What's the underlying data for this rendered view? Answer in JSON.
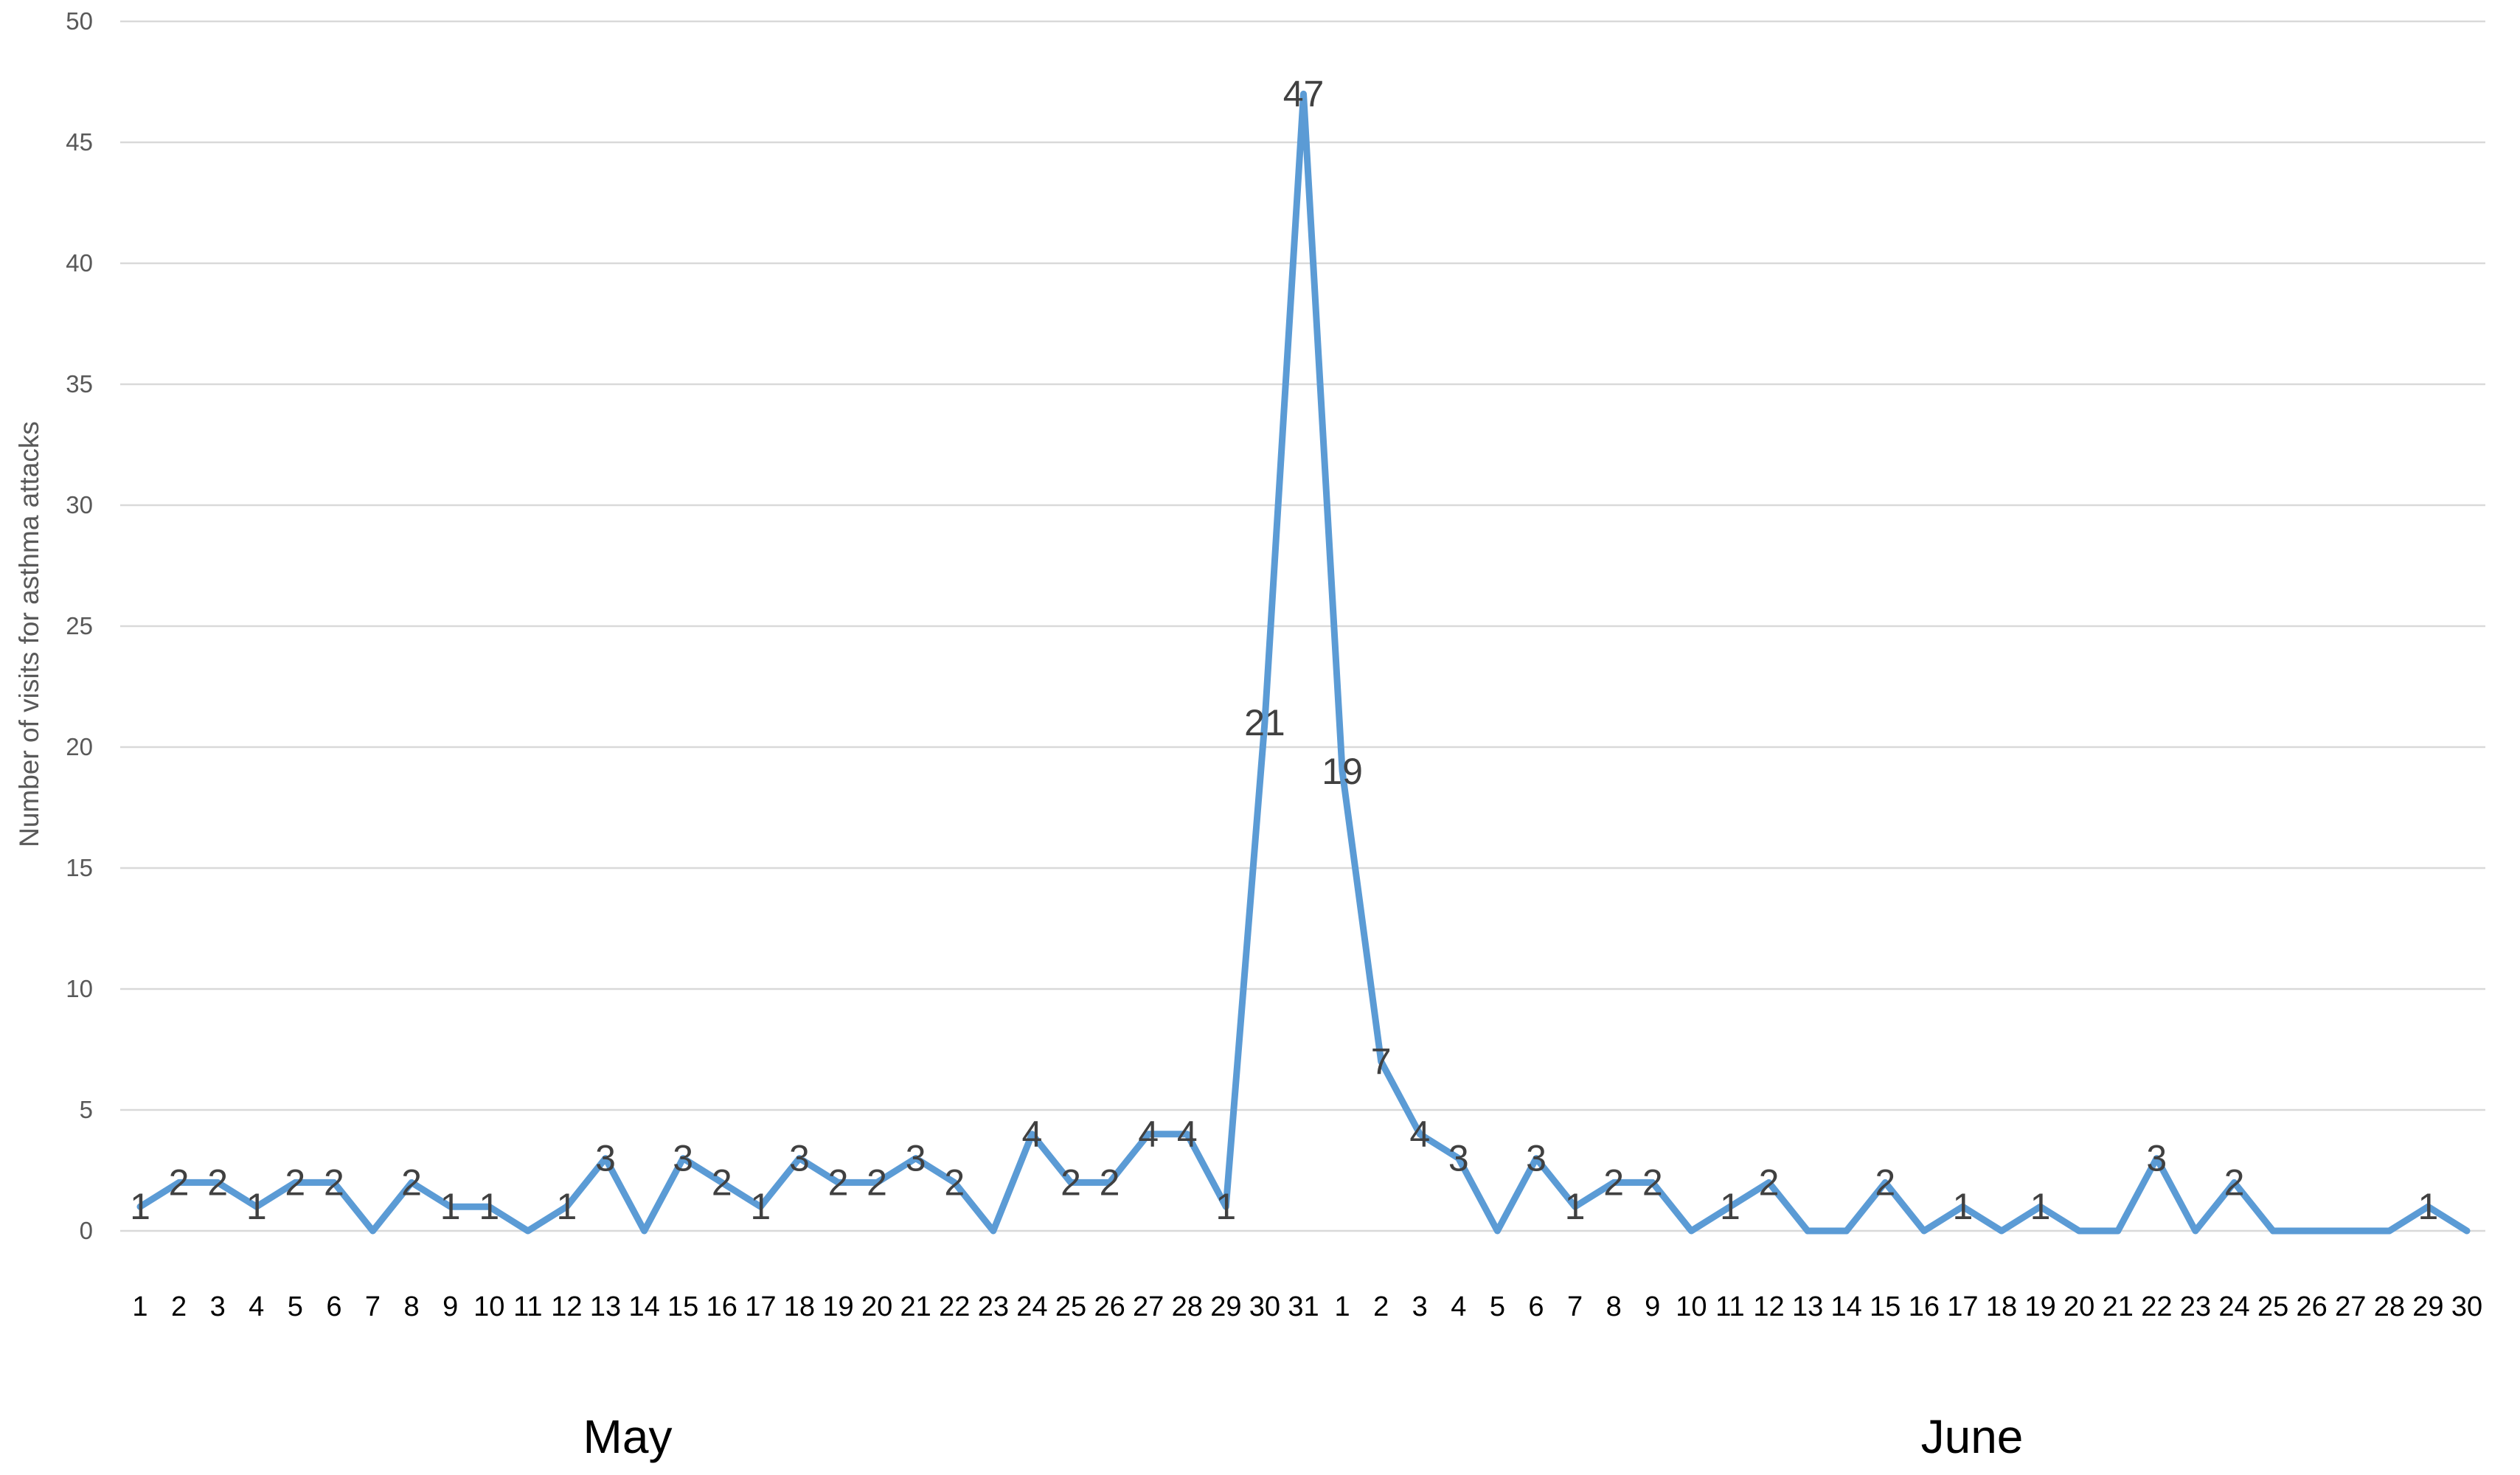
{
  "chart_data": {
    "type": "line",
    "title": "",
    "xlabel": "",
    "ylabel": "Number of visits for asthma attacks",
    "ylim": [
      0,
      50
    ],
    "yticks": [
      0,
      5,
      10,
      15,
      20,
      25,
      30,
      35,
      40,
      45,
      50
    ],
    "grid": true,
    "legend": "none",
    "colors": {
      "series": "#5b9bd5",
      "grid": "#d9d9d9"
    },
    "months": [
      "May",
      "June"
    ],
    "x": [
      "1",
      "2",
      "3",
      "4",
      "5",
      "6",
      "7",
      "8",
      "9",
      "10",
      "11",
      "12",
      "13",
      "14",
      "15",
      "16",
      "17",
      "18",
      "19",
      "20",
      "21",
      "22",
      "23",
      "24",
      "25",
      "26",
      "27",
      "28",
      "29",
      "30",
      "31",
      "1",
      "2",
      "3",
      "4",
      "5",
      "6",
      "7",
      "8",
      "9",
      "10",
      "11",
      "12",
      "13",
      "14",
      "15",
      "16",
      "17",
      "18",
      "19",
      "20",
      "21",
      "22",
      "23",
      "24",
      "25",
      "26",
      "27",
      "28",
      "29",
      "30"
    ],
    "series": [
      {
        "values": [
          1,
          2,
          2,
          1,
          2,
          2,
          0,
          2,
          1,
          1,
          0,
          1,
          3,
          0,
          3,
          2,
          1,
          3,
          2,
          2,
          3,
          2,
          0,
          4,
          2,
          2,
          4,
          4,
          1,
          21,
          47,
          19,
          7,
          4,
          3,
          0,
          3,
          1,
          2,
          2,
          0,
          1,
          2,
          0,
          0,
          2,
          0,
          1,
          0,
          1,
          0,
          0,
          3,
          0,
          2,
          0,
          0,
          0,
          0,
          1,
          0
        ],
        "data_labels": [
          "1",
          "2",
          "2",
          "1",
          "2",
          "2",
          "",
          "2",
          "1",
          "1",
          "",
          "1",
          "3",
          "",
          "3",
          "2",
          "1",
          "3",
          "2",
          "2",
          "3",
          "2",
          "",
          "4",
          "2",
          "2",
          "4",
          "4",
          "1",
          "21",
          "47",
          "19",
          "7",
          "4",
          "3",
          "",
          "3",
          "1",
          "2",
          "2",
          "",
          "1",
          "2",
          "",
          "",
          "2",
          "",
          "1",
          "",
          "1",
          "",
          "",
          "3",
          "",
          "2",
          "",
          "",
          "",
          "",
          "1",
          ""
        ]
      }
    ]
  }
}
